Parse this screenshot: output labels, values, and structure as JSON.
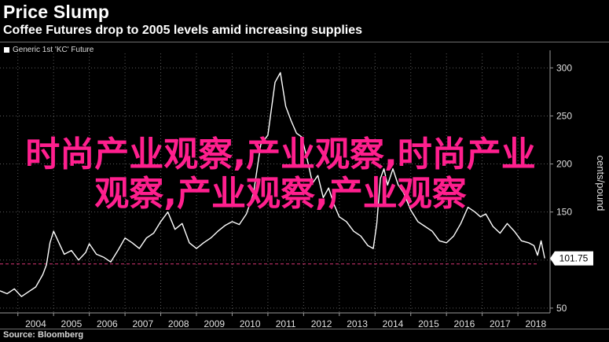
{
  "header": {
    "title": "Price Slump",
    "subtitle": "Coffee Futures drop to 2005 levels amid increasing supplies"
  },
  "footer": {
    "source": "Source: Bloomberg"
  },
  "watermark": {
    "text": "时尚产业观察,产业观察,时尚产业观察,产业观察,产业观察"
  },
  "colors": {
    "background": "#000000",
    "line": "#ffffff",
    "grid": "#5a5a5a",
    "reference_line": "#c0306a",
    "watermark": "#ff1f8e"
  },
  "chart_data": {
    "type": "line",
    "title": "",
    "xlabel": "",
    "ylabel": "cents/pound",
    "x_ticks": [
      "2004",
      "2005",
      "2006",
      "2007",
      "2008",
      "2009",
      "2010",
      "2011",
      "2012",
      "2013",
      "2014",
      "2015",
      "2016",
      "2017",
      "2018"
    ],
    "y_ticks": [
      50,
      100,
      150,
      200,
      250,
      300
    ],
    "xlim": [
      2003.5,
      2018.9
    ],
    "ylim": [
      45,
      315
    ],
    "grid": true,
    "legend": "top-left",
    "last_value_label": "101.75",
    "reference_value": 96,
    "series": [
      {
        "name": "Generic 1st 'KC' Future",
        "x": [
          2003.5,
          2003.7,
          2003.9,
          2004.1,
          2004.3,
          2004.5,
          2004.7,
          2004.8,
          2004.9,
          2005.0,
          2005.15,
          2005.3,
          2005.5,
          2005.7,
          2005.9,
          2006.0,
          2006.2,
          2006.4,
          2006.6,
          2006.8,
          2007.0,
          2007.2,
          2007.4,
          2007.6,
          2007.8,
          2008.0,
          2008.2,
          2008.4,
          2008.6,
          2008.8,
          2009.0,
          2009.2,
          2009.4,
          2009.6,
          2009.8,
          2010.0,
          2010.2,
          2010.4,
          2010.6,
          2010.8,
          2011.0,
          2011.2,
          2011.35,
          2011.5,
          2011.65,
          2011.8,
          2011.95,
          2012.1,
          2012.25,
          2012.4,
          2012.55,
          2012.7,
          2012.85,
          2013.0,
          2013.2,
          2013.4,
          2013.6,
          2013.8,
          2013.95,
          2014.05,
          2014.15,
          2014.25,
          2014.35,
          2014.5,
          2014.65,
          2014.8,
          2015.0,
          2015.2,
          2015.4,
          2015.6,
          2015.8,
          2016.0,
          2016.2,
          2016.4,
          2016.6,
          2016.8,
          2016.95,
          2017.1,
          2017.3,
          2017.5,
          2017.7,
          2017.9,
          2018.1,
          2018.3,
          2018.45,
          2018.55,
          2018.65,
          2018.75
        ],
        "y": [
          68,
          65,
          70,
          62,
          67,
          72,
          85,
          95,
          118,
          130,
          118,
          106,
          110,
          100,
          108,
          117,
          106,
          103,
          98,
          110,
          123,
          118,
          112,
          123,
          128,
          140,
          150,
          132,
          138,
          118,
          112,
          118,
          123,
          130,
          136,
          140,
          137,
          148,
          170,
          220,
          230,
          285,
          295,
          260,
          245,
          232,
          228,
          205,
          180,
          188,
          165,
          175,
          158,
          145,
          140,
          130,
          125,
          115,
          112,
          138,
          185,
          195,
          178,
          195,
          178,
          170,
          152,
          140,
          135,
          130,
          120,
          118,
          125,
          138,
          155,
          150,
          145,
          148,
          135,
          128,
          138,
          130,
          120,
          118,
          115,
          105,
          120,
          101.75
        ]
      }
    ]
  }
}
